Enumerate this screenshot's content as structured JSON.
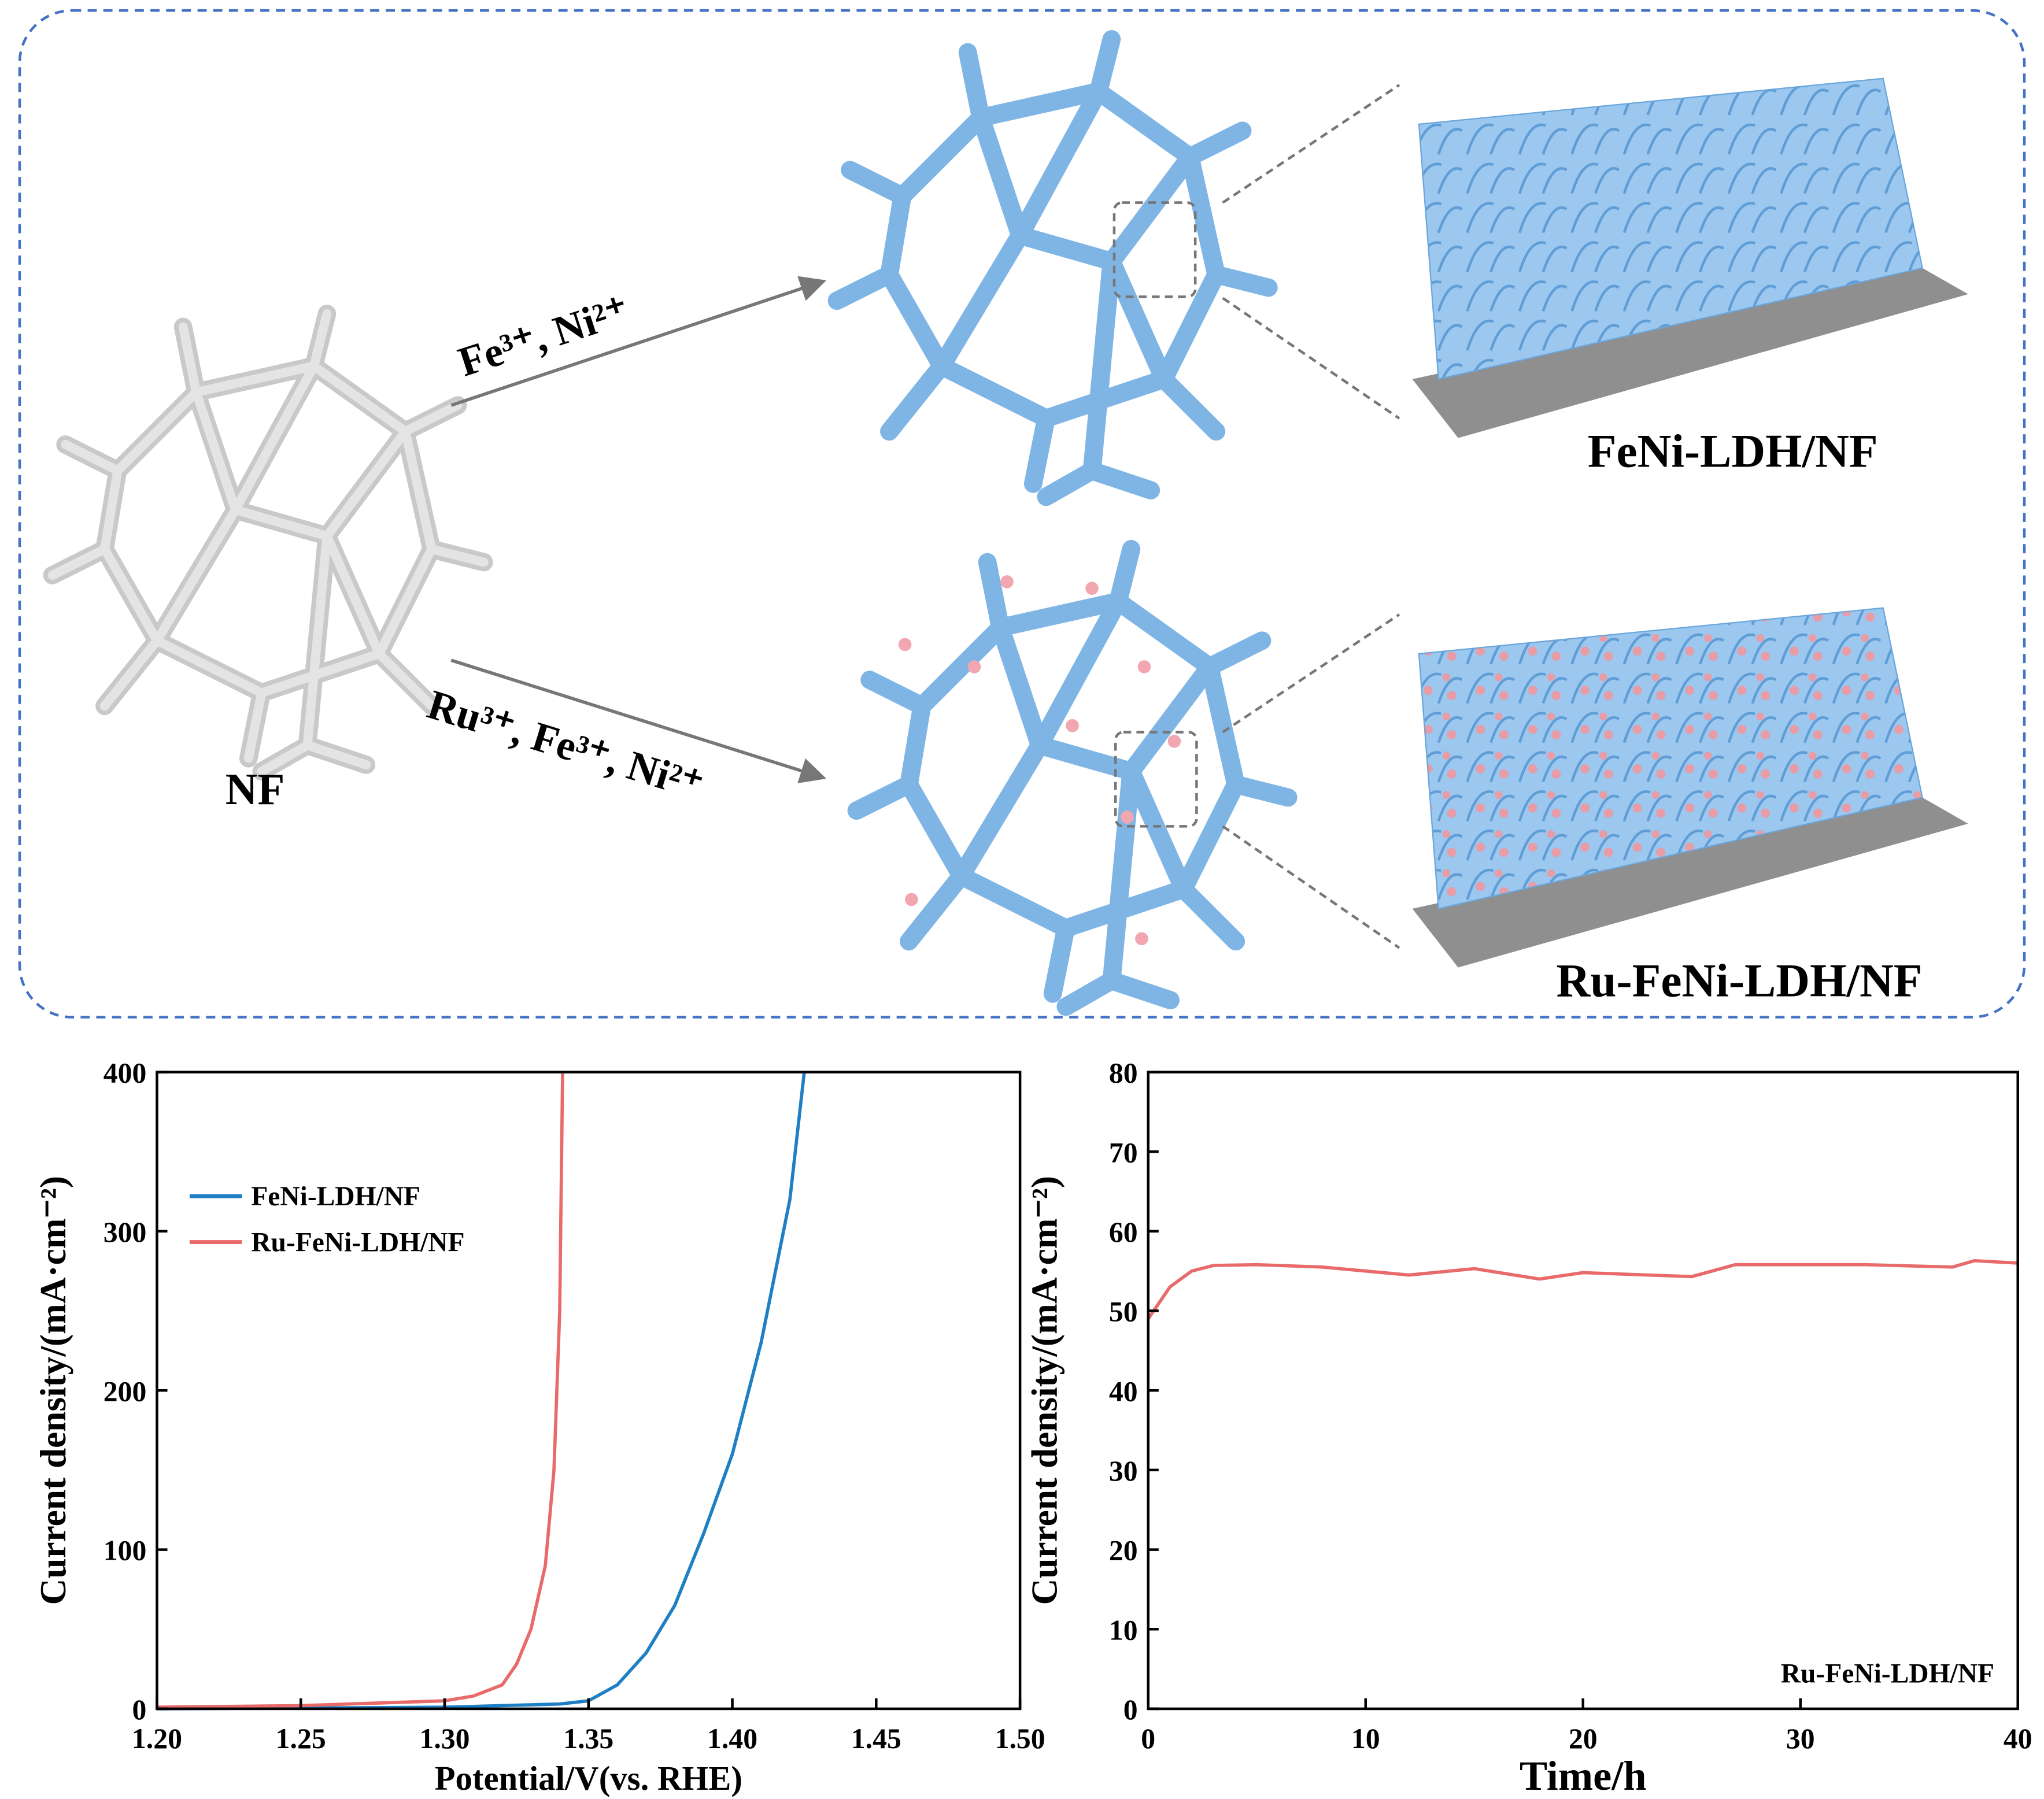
{
  "schematic": {
    "substrate_label": "NF",
    "arrow_top_label": "Fe³⁺,  Ni²⁺",
    "arrow_bottom_label": "Ru³⁺, Fe³⁺,  Ni²⁺",
    "product_top_label": "FeNi-LDH/NF",
    "product_bottom_label": "Ru-FeNi-LDH/NF"
  },
  "chart_data": [
    {
      "type": "line",
      "xlabel": "Potential/V(vs. RHE)",
      "ylabel": "Current density/(mA·cm⁻²)",
      "xlim": [
        1.2,
        1.5
      ],
      "xticks": [
        {
          "value": 1.2,
          "label": "1.20"
        },
        1.25,
        {
          "value": 1.3,
          "label": "1.30"
        },
        1.35,
        {
          "value": 1.4,
          "label": "1.40"
        },
        1.45,
        {
          "value": 1.5,
          "label": "1.50"
        }
      ],
      "ylim": [
        0,
        400
      ],
      "yticks": [
        0,
        100,
        200,
        300,
        400
      ],
      "legend": "upper left",
      "series": [
        {
          "name": "FeNi-LDH/NF",
          "color": "#1f7fc4",
          "x": [
            1.2,
            1.3,
            1.34,
            1.35,
            1.36,
            1.37,
            1.38,
            1.39,
            1.4,
            1.41,
            1.42,
            1.425
          ],
          "values": [
            0,
            1,
            3,
            5,
            15,
            35,
            65,
            110,
            160,
            230,
            320,
            400
          ]
        },
        {
          "name": "Ru-FeNi-LDH/NF",
          "color": "#e86a6a",
          "x": [
            1.2,
            1.25,
            1.3,
            1.31,
            1.32,
            1.325,
            1.33,
            1.335,
            1.338,
            1.34,
            1.341
          ],
          "values": [
            1,
            2,
            5,
            8,
            15,
            28,
            50,
            90,
            150,
            250,
            400
          ]
        }
      ]
    },
    {
      "type": "line",
      "xlabel": "Time/h",
      "ylabel": "Current density/(mA·cm⁻²)",
      "xlim": [
        0,
        40
      ],
      "xticks": [
        0,
        10,
        20,
        30,
        40
      ],
      "ylim": [
        0,
        80
      ],
      "yticks": [
        0,
        10,
        20,
        30,
        40,
        50,
        60,
        70,
        80
      ],
      "legend": "lower right",
      "series": [
        {
          "name": "Ru-FeNi-LDH/NF",
          "color": "#e86a6a",
          "x": [
            0,
            1,
            2,
            3,
            5,
            8,
            12,
            15,
            18,
            20,
            25,
            27,
            33,
            37,
            38,
            40
          ],
          "values": [
            49,
            53,
            55,
            55.7,
            55.8,
            55.5,
            54.5,
            55.3,
            54,
            54.8,
            54.3,
            55.8,
            55.8,
            55.5,
            56.3,
            56
          ]
        }
      ]
    }
  ]
}
